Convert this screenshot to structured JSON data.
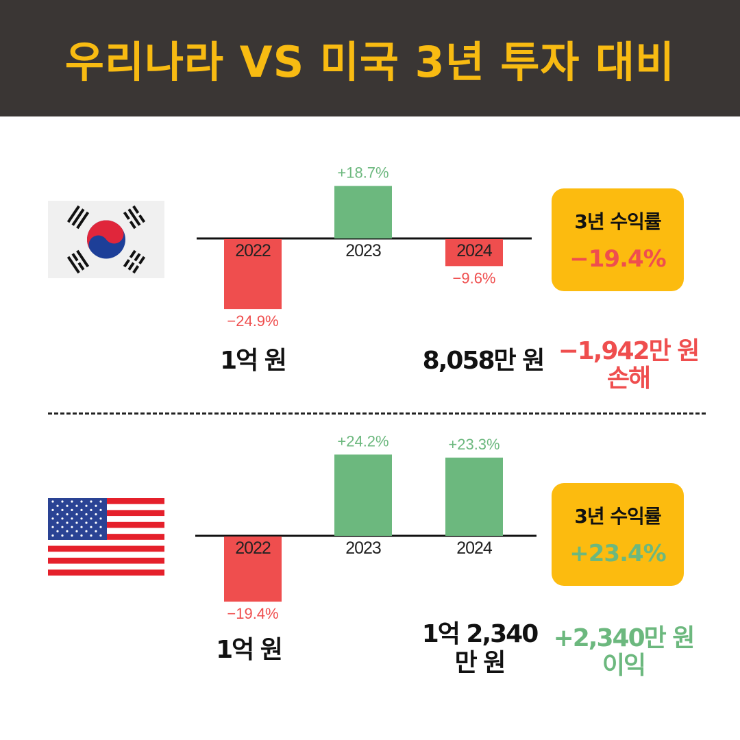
{
  "title": "우리나라 VS 미국 3년 투자 대비",
  "colors": {
    "positive": "#6cb87e",
    "negative": "#ef4e4e",
    "axis": "#111111",
    "box": "#fcbb0f",
    "header_bg": "#3a3634",
    "title": "#f8bb12"
  },
  "chart_data": [
    {
      "type": "bar",
      "categories": [
        "2022",
        "2023",
        "2024"
      ],
      "values": [
        -24.9,
        18.7,
        -9.6
      ],
      "value_labels": [
        "−24.9%",
        "+18.7%",
        "−9.6%"
      ]
    },
    {
      "type": "bar",
      "categories": [
        "2022",
        "2023",
        "2024"
      ],
      "values": [
        -19.4,
        24.2,
        23.3
      ],
      "value_labels": [
        "−19.4%",
        "+24.2%",
        "+23.3%"
      ]
    }
  ],
  "korea": {
    "flag_icon": "south-korea-flag-icon",
    "return_label": "3년 수익률",
    "return_value": "−19.4%",
    "start_amount": "1억 원",
    "end_amount": "8,058만 원",
    "result_amount": "−1,942만 원",
    "result_word": "손해"
  },
  "usa": {
    "flag_icon": "usa-flag-icon",
    "return_label": "3년 수익률",
    "return_value": "+23.4%",
    "start_amount": "1억 원",
    "end_amount_line1": "1억 2,340",
    "end_amount_line2": "만 원",
    "result_amount": "+2,340만 원",
    "result_word": "이익"
  }
}
